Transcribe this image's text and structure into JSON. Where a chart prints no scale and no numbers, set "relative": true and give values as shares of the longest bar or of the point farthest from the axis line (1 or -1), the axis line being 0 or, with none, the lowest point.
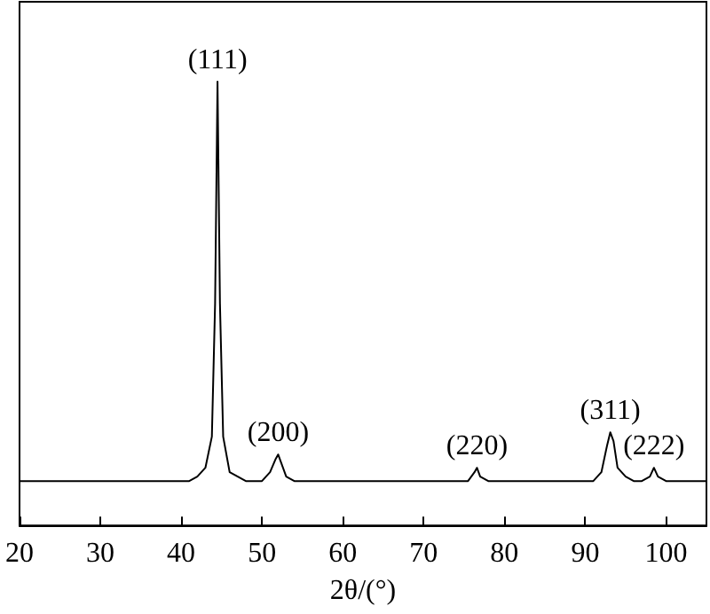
{
  "chart_data": {
    "type": "line",
    "xlabel": "2θ/(°)",
    "relative": true,
    "color": "#000000",
    "x": [
      20,
      22,
      24,
      26,
      28,
      30,
      32,
      34,
      36,
      38,
      40,
      41,
      42,
      43,
      43.8,
      44.2,
      44.5,
      44.8,
      45.2,
      46,
      47,
      48,
      49,
      50,
      51,
      51.7,
      52,
      52.4,
      53,
      54,
      56,
      58,
      60,
      62,
      64,
      66,
      68,
      70,
      72,
      74,
      75.5,
      76.3,
      76.6,
      77,
      78,
      80,
      82,
      84,
      86,
      88,
      90,
      91,
      92,
      92.7,
      93.1,
      93.5,
      94,
      95,
      96,
      97,
      98,
      98.5,
      99,
      100,
      102,
      104,
      105
    ],
    "values": [
      0.1,
      0.1,
      0.1,
      0.1,
      0.1,
      0.1,
      0.1,
      0.1,
      0.1,
      0.1,
      0.1,
      0.1,
      0.11,
      0.13,
      0.2,
      0.5,
      1,
      0.5,
      0.2,
      0.12,
      0.11,
      0.1,
      0.1,
      0.1,
      0.12,
      0.15,
      0.16,
      0.14,
      0.11,
      0.1,
      0.1,
      0.1,
      0.1,
      0.1,
      0.1,
      0.1,
      0.1,
      0.1,
      0.1,
      0.1,
      0.1,
      0.12,
      0.13,
      0.11,
      0.1,
      0.1,
      0.1,
      0.1,
      0.1,
      0.1,
      0.1,
      0.1,
      0.12,
      0.18,
      0.21,
      0.19,
      0.13,
      0.11,
      0.1,
      0.1,
      0.11,
      0.13,
      0.11,
      0.1,
      0.1,
      0.1,
      0.1
    ],
    "xlim": [
      20,
      105
    ],
    "xticks": [
      20,
      30,
      40,
      50,
      60,
      70,
      80,
      90,
      100
    ],
    "annotations": [
      {
        "text": "(111)",
        "x": 44.5,
        "y": 1
      },
      {
        "text": "(200)",
        "x": 52,
        "y": 0.16
      },
      {
        "text": "(220)",
        "x": 76.6,
        "y": 0.13
      },
      {
        "text": "(311)",
        "x": 93.1,
        "y": 0.21
      },
      {
        "text": "(222)",
        "x": 98.5,
        "y": 0.13
      }
    ]
  }
}
